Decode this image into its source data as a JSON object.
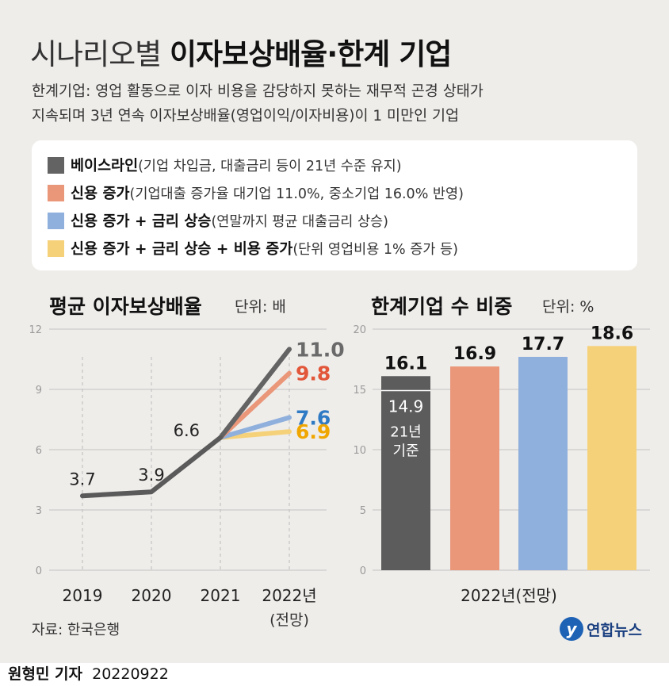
{
  "title": {
    "light": "시나리오별 ",
    "bold": "이자보상배율·한계 기업"
  },
  "description": [
    "한계기업: 영업 활동으로 이자 비용을 감당하지 못하는 재무적 곤경 상태가",
    "지속되며 3년 연속 이자보상배율(영업이익/이자비용)이 1 미만인 기업"
  ],
  "legend": [
    {
      "name": "베이스라인",
      "desc": "(기업 차입금, 대출금리 등이 21년 수준 유지)",
      "color": "#636363"
    },
    {
      "name": "신용 증가",
      "desc": "(기업대출 증가율 대기업 11.0%, 중소기업 16.0% 반영)",
      "color": "#ea9679"
    },
    {
      "name": "신용 증가 + 금리 상승",
      "desc": "(연말까지 평균 대출금리 상승)",
      "color": "#8fb0dc"
    },
    {
      "name": "신용 증가 + 금리 상승 + 비용 증가",
      "desc": "(단위 영업비용 1% 증가 등)",
      "color": "#f5d17a"
    }
  ],
  "line_section": {
    "title": "평균 이자보상배율",
    "unit": "단위: 배"
  },
  "bar_section": {
    "title": "한계기업 수 비중",
    "unit": "단위: %"
  },
  "chart_data": [
    {
      "type": "line",
      "title": "평균 이자보상배율",
      "unit": "단위: 배",
      "x": [
        "2019",
        "2020",
        "2021",
        "2022년"
      ],
      "x_sub": [
        "",
        "",
        "",
        "(전망)"
      ],
      "ylim": [
        0,
        12
      ],
      "yticks": [
        0,
        3,
        6,
        9,
        12
      ],
      "grid": "y",
      "history": {
        "x": [
          "2019",
          "2020",
          "2021"
        ],
        "values": [
          3.7,
          3.9,
          6.6
        ],
        "labels": [
          "3.7",
          "3.9",
          "6.6"
        ],
        "color": "#5a5a5a"
      },
      "series": [
        {
          "x": [
            "2021",
            "2022년"
          ],
          "values": [
            6.6,
            11.0
          ],
          "label": "11.0",
          "color": "#636363",
          "label_color": "#6a6a6a"
        },
        {
          "x": [
            "2021",
            "2022년"
          ],
          "values": [
            6.6,
            9.8
          ],
          "label": "9.8",
          "color": "#ea9679",
          "label_color": "#e2563a"
        },
        {
          "x": [
            "2021",
            "2022년"
          ],
          "values": [
            6.6,
            7.6
          ],
          "label": "7.6",
          "color": "#8fb0dc",
          "label_color": "#2f7ac4"
        },
        {
          "x": [
            "2021",
            "2022년"
          ],
          "values": [
            6.6,
            6.9
          ],
          "label": "6.9",
          "color": "#f5d17a",
          "label_color": "#f0a600"
        }
      ]
    },
    {
      "type": "bar",
      "title": "한계기업 수 비중",
      "unit": "단위: %",
      "xlabel": "2022년(전망)",
      "ylim": [
        0,
        20
      ],
      "yticks": [
        0,
        5,
        10,
        15,
        20
      ],
      "grid": "y",
      "values": [
        16.1,
        16.9,
        17.7,
        18.6
      ],
      "labels": [
        "16.1",
        "16.9",
        "17.7",
        "18.6"
      ],
      "colors": [
        "#5c5c5c",
        "#ea9679",
        "#8fb0dc",
        "#f5d17a"
      ],
      "baseline_marker": {
        "value": 14.9,
        "label": "14.9",
        "note_line1": "21년",
        "note_line2": "기준"
      }
    }
  ],
  "source": "자료: 한국은행",
  "logo_text": "연합뉴스",
  "byline": {
    "reporter": "원형민 기자",
    "date": "20220922"
  }
}
